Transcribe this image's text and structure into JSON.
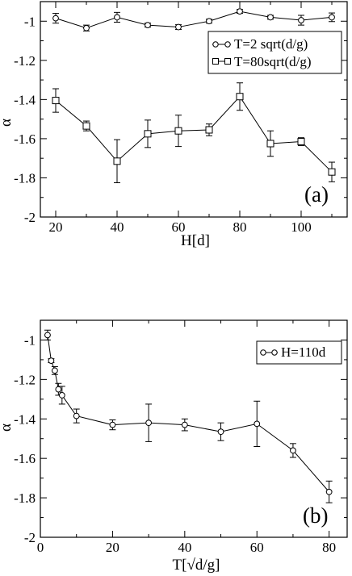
{
  "chart_data": [
    {
      "type": "line",
      "panel": "(a)",
      "xlabel": "H[d]",
      "ylabel": "α",
      "xlim": [
        15,
        115
      ],
      "ylim": [
        -2,
        -0.9
      ],
      "xticks": [
        20,
        40,
        60,
        80,
        100
      ],
      "yticks": [
        -2,
        -1.8,
        -1.6,
        -1.4,
        -1.2,
        -1
      ],
      "xtick_labels": [
        "20",
        "40",
        "60",
        "80",
        "100"
      ],
      "ytick_labels": [
        "-2",
        "-1.8",
        "-1.6",
        "-1.4",
        "-1.2",
        "-1"
      ],
      "grid": false,
      "legend_position": "top-right",
      "x": [
        20,
        30,
        40,
        50,
        60,
        70,
        80,
        90,
        100,
        110
      ],
      "series": [
        {
          "name": "T=2 sqrt(d/g)",
          "marker": "circle",
          "values": [
            -0.985,
            -1.035,
            -0.98,
            -1.02,
            -1.03,
            -1.0,
            -0.95,
            -0.98,
            -0.995,
            -0.98
          ],
          "errors": [
            0.025,
            0.015,
            0.025,
            0.01,
            0.012,
            0.01,
            0.01,
            0.01,
            0.025,
            0.022
          ]
        },
        {
          "name": "T=80sqrt(d/g)",
          "marker": "square",
          "values": [
            -1.405,
            -1.535,
            -1.715,
            -1.575,
            -1.56,
            -1.555,
            -1.385,
            -1.625,
            -1.615,
            -1.77
          ],
          "errors": [
            0.06,
            0.025,
            0.11,
            0.07,
            0.08,
            0.03,
            0.07,
            0.065,
            0.02,
            0.05
          ]
        }
      ]
    },
    {
      "type": "line",
      "panel": "(b)",
      "xlabel": "T[√d/g]",
      "ylabel": "α",
      "xlim": [
        0,
        85
      ],
      "ylim": [
        -2,
        -0.9
      ],
      "xticks": [
        0,
        20,
        40,
        60,
        80
      ],
      "yticks": [
        -2,
        -1.8,
        -1.6,
        -1.4,
        -1.2,
        -1
      ],
      "xtick_labels": [
        "0",
        "20",
        "40",
        "60",
        "80"
      ],
      "ytick_labels": [
        "-2",
        "-1.8",
        "-1.6",
        "-1.4",
        "-1.2",
        "-1"
      ],
      "grid": false,
      "legend_position": "top-right",
      "series": [
        {
          "name": "H=110d",
          "marker": "circle",
          "x": [
            2,
            3,
            4,
            5,
            6,
            10,
            20,
            30,
            40,
            50,
            60,
            70,
            80
          ],
          "values": [
            -0.975,
            -1.105,
            -1.155,
            -1.25,
            -1.28,
            -1.385,
            -1.43,
            -1.42,
            -1.43,
            -1.465,
            -1.425,
            -1.56,
            -1.77
          ],
          "errors": [
            0.025,
            0.01,
            0.02,
            0.03,
            0.045,
            0.035,
            0.025,
            0.095,
            0.03,
            0.045,
            0.115,
            0.035,
            0.055
          ]
        }
      ]
    }
  ]
}
